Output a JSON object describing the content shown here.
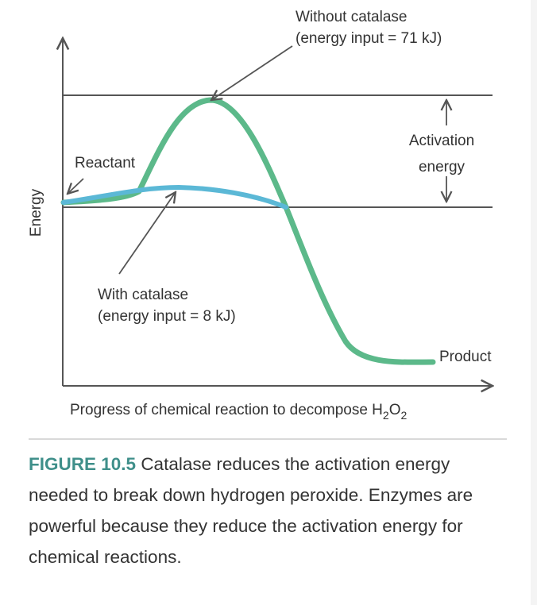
{
  "diagram": {
    "labels": {
      "without_catalase_line1": "Without catalase",
      "without_catalase_line2": "(energy input = 71 kJ)",
      "activation_line1": "Activation",
      "activation_line2": "energy",
      "reactant": "Reactant",
      "with_catalase_line1": "With catalase",
      "with_catalase_line2": "(energy input = 8 kJ)",
      "product": "Product",
      "y_axis": "Energy",
      "x_axis_main": "Progress of chemical reaction to decompose H",
      "x_axis_sub1": "2",
      "x_axis_mid": "O",
      "x_axis_sub2": "2"
    },
    "colors": {
      "without_catalase_curve": "#5cb98a",
      "with_catalase_curve": "#5bb8d6",
      "guide_lines": "#555555",
      "arrows": "#555555",
      "caption_label": "#3f8f8a"
    }
  },
  "caption": {
    "figure_label": "FIGURE 10.5",
    "text": "Catalase reduces the activation energy needed to break down hydrogen peroxide. Enzymes are powerful because they reduce the activation energy for chemical reactions."
  }
}
